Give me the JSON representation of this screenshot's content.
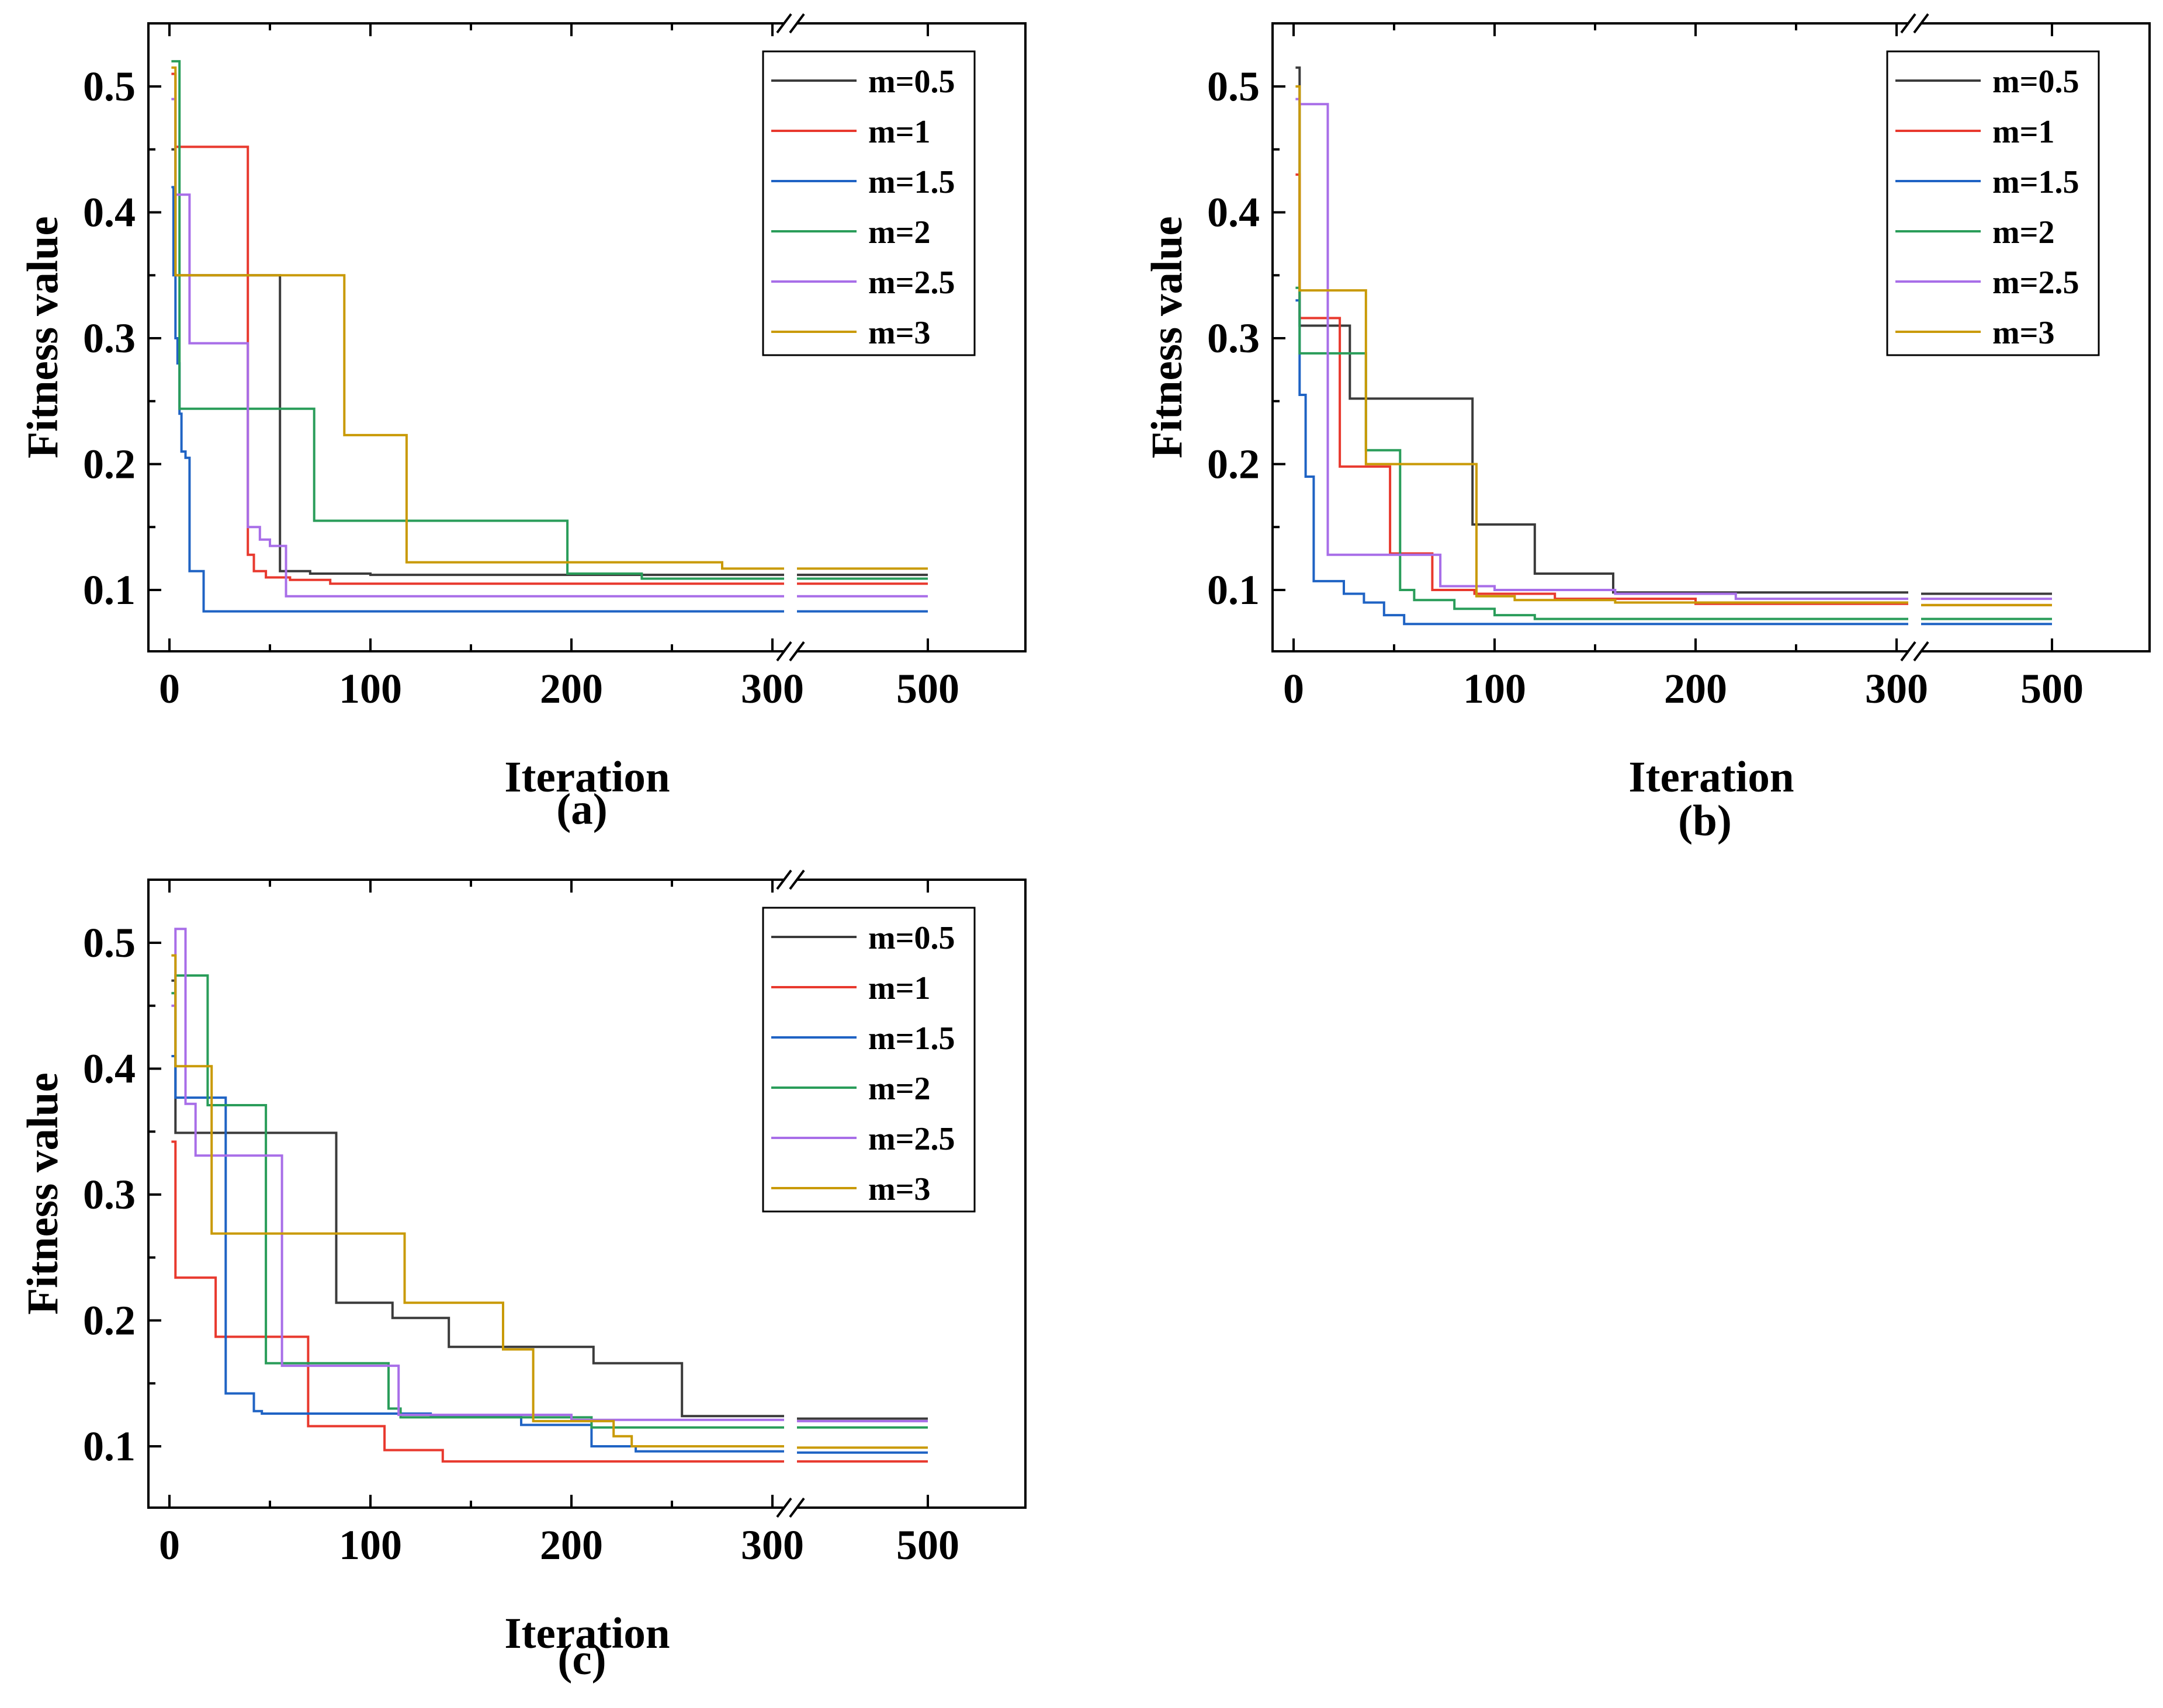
{
  "figure": {
    "panel_labels": [
      "(a)",
      "(b)",
      "(c)"
    ]
  },
  "chart_data": [
    {
      "type": "line",
      "panel": "(a)",
      "xlabel": "Iteration",
      "ylabel": "Fitness value",
      "x_ticks": [
        "0",
        "100",
        "200",
        "300",
        "500"
      ],
      "y_ticks": [
        "0.1",
        "0.2",
        "0.3",
        "0.4",
        "0.5"
      ],
      "xlim": [
        -10,
        510
      ],
      "ylim": [
        0.05,
        0.55
      ],
      "x_axis_break": [
        310,
        500
      ],
      "grid": false,
      "legend": "top-right",
      "series": [
        {
          "name": "m=0.5",
          "color": "#3b3b3b",
          "steps": [
            [
              1,
              0.45
            ],
            [
              3,
              0.35
            ],
            [
              54,
              0.35
            ],
            [
              55,
              0.115
            ],
            [
              70,
              0.113
            ],
            [
              100,
              0.112
            ],
            [
              310,
              0.112
            ],
            [
              500,
              0.112
            ]
          ]
        },
        {
          "name": "m=1",
          "color": "#e8392e",
          "steps": [
            [
              1,
              0.51
            ],
            [
              3,
              0.452
            ],
            [
              38,
              0.452
            ],
            [
              39,
              0.128
            ],
            [
              42,
              0.115
            ],
            [
              48,
              0.11
            ],
            [
              60,
              0.108
            ],
            [
              80,
              0.105
            ],
            [
              310,
              0.105
            ],
            [
              500,
              0.105
            ]
          ]
        },
        {
          "name": "m=1.5",
          "color": "#1f63c4",
          "steps": [
            [
              1,
              0.42
            ],
            [
              2,
              0.35
            ],
            [
              3,
              0.3
            ],
            [
              4,
              0.28
            ],
            [
              5,
              0.24
            ],
            [
              6,
              0.21
            ],
            [
              8,
              0.205
            ],
            [
              10,
              0.115
            ],
            [
              17,
              0.083
            ],
            [
              310,
              0.083
            ],
            [
              500,
              0.083
            ]
          ]
        },
        {
          "name": "m=2",
          "color": "#2a9d5a",
          "steps": [
            [
              1,
              0.52
            ],
            [
              5,
              0.244
            ],
            [
              70,
              0.244
            ],
            [
              72,
              0.155
            ],
            [
              197,
              0.155
            ],
            [
              198,
              0.113
            ],
            [
              235,
              0.109
            ],
            [
              310,
              0.109
            ],
            [
              500,
              0.109
            ]
          ]
        },
        {
          "name": "m=2.5",
          "color": "#a86ee8",
          "steps": [
            [
              1,
              0.49
            ],
            [
              3,
              0.414
            ],
            [
              10,
              0.296
            ],
            [
              38,
              0.296
            ],
            [
              39,
              0.15
            ],
            [
              45,
              0.14
            ],
            [
              50,
              0.135
            ],
            [
              58,
              0.095
            ],
            [
              310,
              0.095
            ],
            [
              500,
              0.095
            ]
          ]
        },
        {
          "name": "m=3",
          "color": "#c99a06",
          "steps": [
            [
              1,
              0.515
            ],
            [
              3,
              0.35
            ],
            [
              86,
              0.35
            ],
            [
              87,
              0.223
            ],
            [
              117,
              0.223
            ],
            [
              118,
              0.122
            ],
            [
              275,
              0.117
            ],
            [
              310,
              0.117
            ],
            [
              500,
              0.117
            ]
          ]
        }
      ]
    },
    {
      "type": "line",
      "panel": "(b)",
      "xlabel": "Iteration",
      "ylabel": "Fitness value",
      "x_ticks": [
        "0",
        "100",
        "200",
        "300",
        "500"
      ],
      "y_ticks": [
        "0.1",
        "0.2",
        "0.3",
        "0.4",
        "0.5"
      ],
      "xlim": [
        -10,
        510
      ],
      "ylim": [
        0.05,
        0.55
      ],
      "x_axis_break": [
        310,
        500
      ],
      "grid": false,
      "legend": "top-right",
      "series": [
        {
          "name": "m=0.5",
          "color": "#3b3b3b",
          "steps": [
            [
              1,
              0.515
            ],
            [
              3,
              0.31
            ],
            [
              27,
              0.31
            ],
            [
              28,
              0.252
            ],
            [
              88,
              0.252
            ],
            [
              89,
              0.152
            ],
            [
              119,
              0.152
            ],
            [
              120,
              0.113
            ],
            [
              158,
              0.113
            ],
            [
              159,
              0.098
            ],
            [
              310,
              0.097
            ],
            [
              500,
              0.097
            ]
          ]
        },
        {
          "name": "m=1",
          "color": "#e8392e",
          "steps": [
            [
              1,
              0.43
            ],
            [
              3,
              0.316
            ],
            [
              22,
              0.316
            ],
            [
              23,
              0.198
            ],
            [
              47,
              0.198
            ],
            [
              48,
              0.129
            ],
            [
              68,
              0.129
            ],
            [
              69,
              0.1
            ],
            [
              90,
              0.097
            ],
            [
              130,
              0.093
            ],
            [
              200,
              0.089
            ],
            [
              310,
              0.088
            ],
            [
              500,
              0.088
            ]
          ]
        },
        {
          "name": "m=1.5",
          "color": "#1f63c4",
          "steps": [
            [
              1,
              0.33
            ],
            [
              3,
              0.255
            ],
            [
              6,
              0.19
            ],
            [
              10,
              0.107
            ],
            [
              25,
              0.097
            ],
            [
              35,
              0.09
            ],
            [
              45,
              0.08
            ],
            [
              55,
              0.073
            ],
            [
              310,
              0.073
            ],
            [
              500,
              0.073
            ]
          ]
        },
        {
          "name": "m=2",
          "color": "#2a9d5a",
          "steps": [
            [
              1,
              0.34
            ],
            [
              3,
              0.288
            ],
            [
              35,
              0.288
            ],
            [
              36,
              0.211
            ],
            [
              52,
              0.211
            ],
            [
              53,
              0.1
            ],
            [
              60,
              0.092
            ],
            [
              80,
              0.085
            ],
            [
              100,
              0.08
            ],
            [
              120,
              0.077
            ],
            [
              310,
              0.077
            ],
            [
              500,
              0.077
            ]
          ]
        },
        {
          "name": "m=2.5",
          "color": "#a86ee8",
          "steps": [
            [
              1,
              0.49
            ],
            [
              3,
              0.486
            ],
            [
              16,
              0.486
            ],
            [
              17,
              0.128
            ],
            [
              72,
              0.128
            ],
            [
              73,
              0.103
            ],
            [
              100,
              0.1
            ],
            [
              160,
              0.097
            ],
            [
              220,
              0.093
            ],
            [
              310,
              0.093
            ],
            [
              500,
              0.093
            ]
          ]
        },
        {
          "name": "m=3",
          "color": "#c99a06",
          "steps": [
            [
              1,
              0.5
            ],
            [
              3,
              0.338
            ],
            [
              35,
              0.338
            ],
            [
              36,
              0.2
            ],
            [
              90,
              0.2
            ],
            [
              91,
              0.095
            ],
            [
              110,
              0.092
            ],
            [
              160,
              0.09
            ],
            [
              310,
              0.088
            ],
            [
              500,
              0.088
            ]
          ]
        }
      ]
    },
    {
      "type": "line",
      "panel": "(c)",
      "xlabel": "Iteration",
      "ylabel": "Fitness value",
      "x_ticks": [
        "0",
        "100",
        "200",
        "300",
        "500"
      ],
      "y_ticks": [
        "0.1",
        "0.2",
        "0.3",
        "0.4",
        "0.5"
      ],
      "xlim": [
        -10,
        510
      ],
      "ylim": [
        0.05,
        0.55
      ],
      "x_axis_break": [
        310,
        500
      ],
      "grid": false,
      "legend": "top-right",
      "series": [
        {
          "name": "m=0.5",
          "color": "#3b3b3b",
          "steps": [
            [
              1,
              0.47
            ],
            [
              3,
              0.349
            ],
            [
              82,
              0.349
            ],
            [
              83,
              0.214
            ],
            [
              110,
              0.214
            ],
            [
              111,
              0.202
            ],
            [
              138,
              0.202
            ],
            [
              139,
              0.179
            ],
            [
              210,
              0.179
            ],
            [
              211,
              0.166
            ],
            [
              254,
              0.166
            ],
            [
              255,
              0.124
            ],
            [
              310,
              0.122
            ],
            [
              500,
              0.122
            ]
          ]
        },
        {
          "name": "m=1",
          "color": "#e8392e",
          "steps": [
            [
              1,
              0.342
            ],
            [
              3,
              0.234
            ],
            [
              22,
              0.234
            ],
            [
              23,
              0.187
            ],
            [
              68,
              0.187
            ],
            [
              69,
              0.116
            ],
            [
              106,
              0.116
            ],
            [
              107,
              0.097
            ],
            [
              135,
              0.097
            ],
            [
              136,
              0.088
            ],
            [
              310,
              0.088
            ],
            [
              500,
              0.088
            ]
          ]
        },
        {
          "name": "m=1.5",
          "color": "#1f63c4",
          "steps": [
            [
              1,
              0.41
            ],
            [
              3,
              0.377
            ],
            [
              27,
              0.377
            ],
            [
              28,
              0.142
            ],
            [
              41,
              0.142
            ],
            [
              42,
              0.128
            ],
            [
              46,
              0.126
            ],
            [
              130,
              0.124
            ],
            [
              175,
              0.117
            ],
            [
              210,
              0.1
            ],
            [
              232,
              0.096
            ],
            [
              310,
              0.095
            ],
            [
              500,
              0.095
            ]
          ]
        },
        {
          "name": "m=2",
          "color": "#2a9d5a",
          "steps": [
            [
              1,
              0.46
            ],
            [
              3,
              0.474
            ],
            [
              18,
              0.474
            ],
            [
              19,
              0.371
            ],
            [
              47,
              0.371
            ],
            [
              48,
              0.166
            ],
            [
              108,
              0.166
            ],
            [
              109,
              0.13
            ],
            [
              115,
              0.123
            ],
            [
              210,
              0.115
            ],
            [
              310,
              0.115
            ],
            [
              500,
              0.115
            ]
          ]
        },
        {
          "name": "m=2.5",
          "color": "#a86ee8",
          "steps": [
            [
              1,
              0.45
            ],
            [
              3,
              0.511
            ],
            [
              7,
              0.511
            ],
            [
              8,
              0.372
            ],
            [
              12,
              0.372
            ],
            [
              13,
              0.331
            ],
            [
              55,
              0.331
            ],
            [
              56,
              0.164
            ],
            [
              113,
              0.164
            ],
            [
              114,
              0.125
            ],
            [
              200,
              0.121
            ],
            [
              310,
              0.12
            ],
            [
              500,
              0.12
            ]
          ]
        },
        {
          "name": "m=3",
          "color": "#c99a06",
          "steps": [
            [
              1,
              0.49
            ],
            [
              3,
              0.402
            ],
            [
              20,
              0.402
            ],
            [
              21,
              0.269
            ],
            [
              116,
              0.269
            ],
            [
              117,
              0.214
            ],
            [
              165,
              0.214
            ],
            [
              166,
              0.177
            ],
            [
              180,
              0.177
            ],
            [
              181,
              0.12
            ],
            [
              220,
              0.12
            ],
            [
              221,
              0.108
            ],
            [
              230,
              0.1
            ],
            [
              310,
              0.099
            ],
            [
              500,
              0.099
            ]
          ]
        }
      ]
    }
  ]
}
